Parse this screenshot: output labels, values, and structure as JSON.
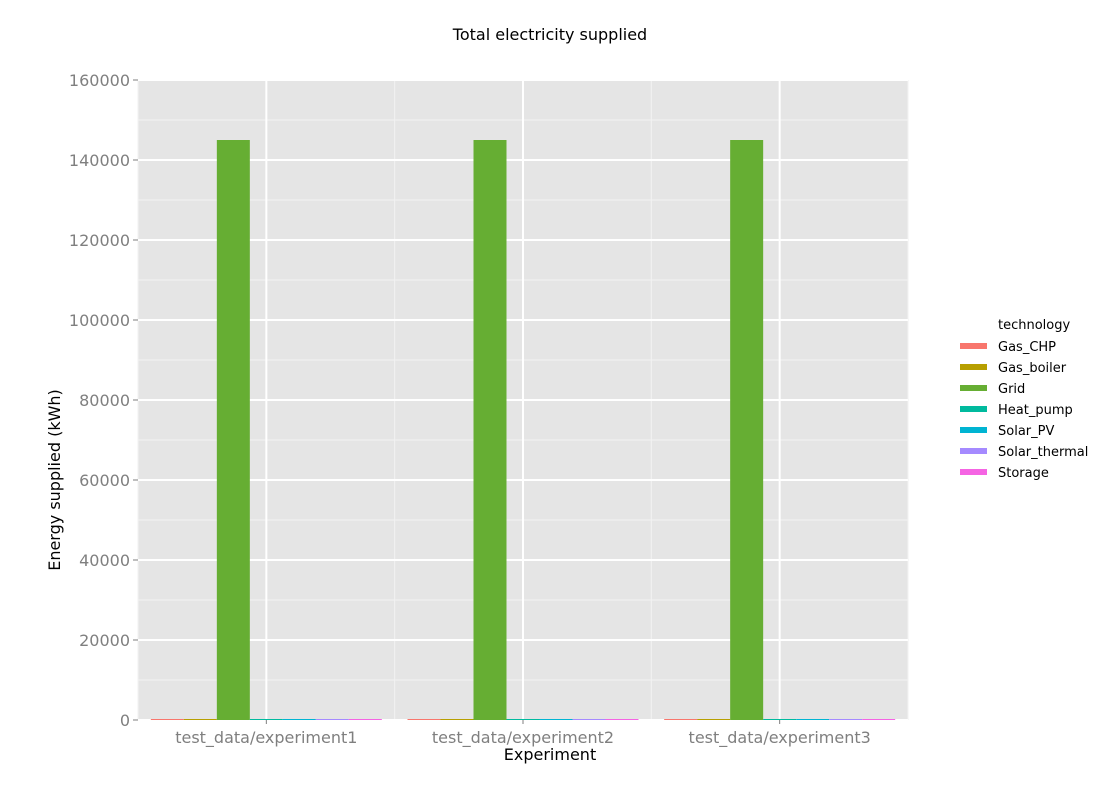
{
  "chart_data": {
    "type": "bar",
    "title": "Total electricity supplied",
    "xlabel": "Experiment",
    "ylabel": "Energy supplied (kWh)",
    "ylim": [
      0,
      160000
    ],
    "yticks": [
      "0",
      "20000",
      "40000",
      "60000",
      "80000",
      "100000",
      "120000",
      "140000",
      "160000"
    ],
    "categories": [
      "test_data/experiment1",
      "test_data/experiment2",
      "test_data/experiment3"
    ],
    "legend_title": "technology",
    "legend_position": "right",
    "grid": true,
    "series": [
      {
        "name": "Gas_CHP",
        "color": "#F8766D",
        "values": [
          0,
          0,
          0
        ]
      },
      {
        "name": "Gas_boiler",
        "color": "#B79F00",
        "values": [
          0,
          0,
          0
        ]
      },
      {
        "name": "Grid",
        "color": "#66AE33",
        "values": [
          145000,
          145000,
          145000
        ]
      },
      {
        "name": "Heat_pump",
        "color": "#00BA9E",
        "values": [
          0,
          0,
          0
        ]
      },
      {
        "name": "Solar_PV",
        "color": "#00B4D2",
        "values": [
          0,
          0,
          0
        ]
      },
      {
        "name": "Solar_thermal",
        "color": "#A58AFF",
        "values": [
          0,
          0,
          0
        ]
      },
      {
        "name": "Storage",
        "color": "#F564E3",
        "values": [
          0,
          0,
          0
        ]
      }
    ],
    "panel_background": "#E5E5E5",
    "gridline_color": "#FFFFFF"
  }
}
